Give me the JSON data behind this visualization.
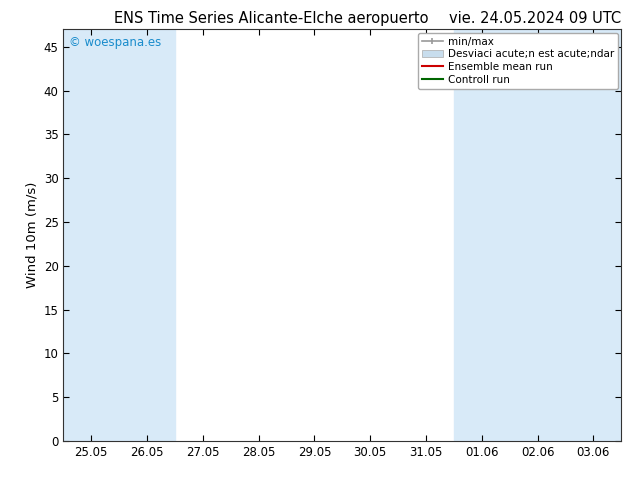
{
  "title_left": "ENS Time Series Alicante-Elche aeropuerto",
  "title_right": "vie. 24.05.2024 09 UTC",
  "ylabel": "Wind 10m (m/s)",
  "watermark": "© woespana.es",
  "watermark_color": "#1a8ccc",
  "ylim": [
    0,
    47
  ],
  "yticks": [
    0,
    5,
    10,
    15,
    20,
    25,
    30,
    35,
    40,
    45
  ],
  "x_tick_labels": [
    "25.05",
    "26.05",
    "27.05",
    "28.05",
    "29.05",
    "30.05",
    "31.05",
    "01.06",
    "02.06",
    "03.06"
  ],
  "x_tick_positions": [
    0,
    1,
    2,
    3,
    4,
    5,
    6,
    7,
    8,
    9
  ],
  "xlim": [
    -0.5,
    9.5
  ],
  "shaded_bands": [
    {
      "x_start": -0.5,
      "x_end": 1.5,
      "color": "#d8eaf8"
    },
    {
      "x_start": 6.5,
      "x_end": 8.5,
      "color": "#d8eaf8"
    },
    {
      "x_start": 8.5,
      "x_end": 9.5,
      "color": "#d8eaf8"
    }
  ],
  "legend_label_minmax": "min/max",
  "legend_label_std": "Desviaci acute;n est acute;ndar",
  "legend_label_ensemble": "Ensemble mean run",
  "legend_label_control": "Controll run",
  "legend_color_minmax": "#999999",
  "legend_color_std": "#c8dded",
  "legend_color_ensemble": "#cc0000",
  "legend_color_control": "#006600",
  "background_color": "#ffffff",
  "plot_bg_color": "#ffffff",
  "title_fontsize": 10.5,
  "tick_fontsize": 8.5,
  "ylabel_fontsize": 9.5,
  "legend_fontsize": 7.5,
  "watermark_fontsize": 8.5
}
